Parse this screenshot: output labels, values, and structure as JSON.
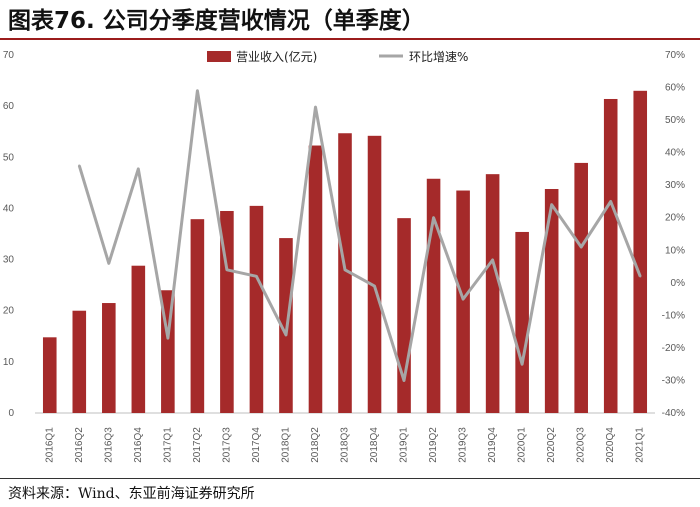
{
  "title": "图表76. 公司分季度营收情况（单季度）",
  "source": "资料来源：Wind、东亚前海证券研究所",
  "chart_data": {
    "type": "bar",
    "categories": [
      "2016Q1",
      "2016Q2",
      "2016Q3",
      "2016Q4",
      "2017Q1",
      "2017Q2",
      "2017Q3",
      "2017Q4",
      "2018Q1",
      "2018Q2",
      "2018Q3",
      "2018Q4",
      "2019Q1",
      "2019Q2",
      "2019Q3",
      "2019Q4",
      "2020Q1",
      "2020Q2",
      "2020Q3",
      "2020Q4",
      "2021Q1"
    ],
    "series": [
      {
        "name": "营业收入(亿元)",
        "type": "bar",
        "axis": "left",
        "color": "#a52a2a",
        "values": [
          14.8,
          20.0,
          21.5,
          28.8,
          24.0,
          37.9,
          39.5,
          40.5,
          34.2,
          52.3,
          54.7,
          54.2,
          38.1,
          45.8,
          43.5,
          46.7,
          35.4,
          43.8,
          48.9,
          61.4,
          63.0
        ]
      },
      {
        "name": "环比增速%",
        "type": "line",
        "axis": "right",
        "color": "#a6a6a6",
        "values": [
          null,
          36,
          6,
          35,
          -17,
          59,
          4,
          2,
          -16,
          54,
          4,
          -1,
          -30,
          20,
          -5,
          7,
          -25,
          24,
          11,
          25,
          2
        ]
      }
    ],
    "left_axis": {
      "min": 0,
      "max": 70,
      "step": 10,
      "ticks": [
        "0",
        "10",
        "20",
        "30",
        "40",
        "50",
        "60",
        "70"
      ]
    },
    "right_axis": {
      "min": -40,
      "max": 70,
      "step": 10,
      "ticks": [
        "-40%",
        "-30%",
        "-20%",
        "-10%",
        "0%",
        "10%",
        "20%",
        "30%",
        "40%",
        "50%",
        "60%",
        "70%"
      ]
    },
    "grid": false,
    "legend": "top-center"
  }
}
